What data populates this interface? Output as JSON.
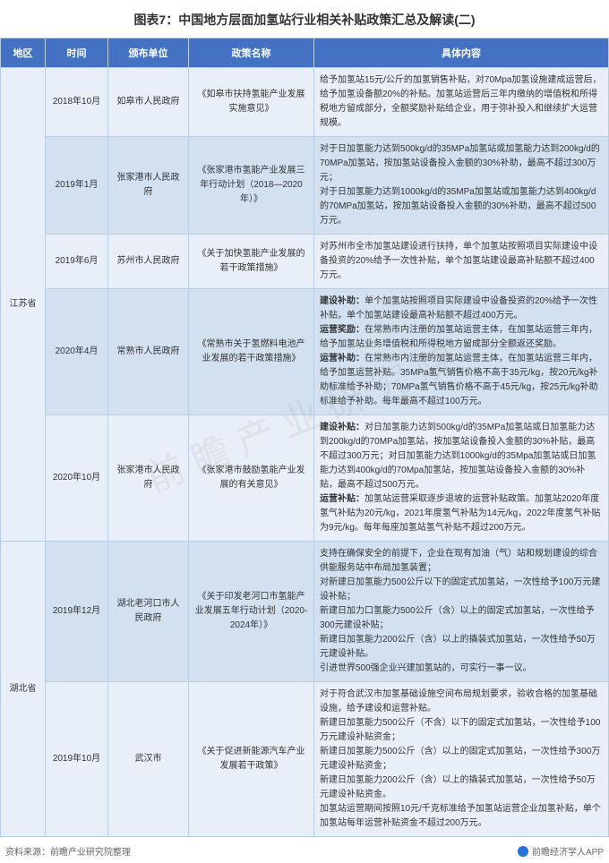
{
  "title": "图表7：中国地方层面加氢站行业相关补贴政策汇总及解读(二)",
  "columns": {
    "region": "地区",
    "time": "时间",
    "issuer": "颁布单位",
    "policy": "政策名称",
    "content": "具体内容"
  },
  "watermark": "前瞻产业研究院",
  "footer_left": "资料来源：前瞻产业研究院整理",
  "footer_right": "前瞻经济学人APP",
  "colors": {
    "header_bg": "#4372c3",
    "header_text": "#ffffff",
    "row_odd": "#e9eff8",
    "row_even": "#d2e0f0",
    "border": "#b9cde6",
    "title_text": "#333333",
    "footer_text": "#666666"
  },
  "regions": [
    {
      "name": "江苏省",
      "rows": [
        {
          "time": "2018年10月",
          "issuer": "如皋市人民政府",
          "policy": "《如皋市扶持氢能产业发展实施意见》",
          "content": "给予加氢站15元/公斤的加氢销售补贴，对70Mpa加氢设施建成运营后，给予加氢设备额20%的补贴。加氢站运营后三年内缴纳的增值税和所得税地方留成部分，全额奖励补贴给企业，用于弥补投入和继续扩大运营规模。"
        },
        {
          "time": "2019年1月",
          "issuer": "张家港市人民政府",
          "policy": "《张家港市氢能产业发展三年行动计划（2018—2020年）》",
          "content": "对于日加氢能力达到500kg/d的35MPa加氢站或加氢能力达到200kg/d的70MPa加氢站，按加氢站设备投入金额的30%补助，最高不超过300万元；\n对于日加氢能力达到1000kg/d的35MPa加氢站或加氢能力达到400kg/d的70MPa加氢站，按加氢站设备投入金额的30%补助，最高不超过500万元。"
        },
        {
          "time": "2019年6月",
          "issuer": "苏州市人民政府",
          "policy": "《关于加快氢能产业发展的若干政策措施》",
          "content": "对苏州市全市加氢站建设进行扶持，单个加氢站按照项目实际建设中设备投资的20%给予一次性补贴，单个加氢站建设最高补贴额不超过400万元。"
        },
        {
          "time": "2020年4月",
          "issuer": "常熟市人民政府",
          "policy": "《常熟市关于氢燃料电池产业发展的若干政策措施》",
          "content_html": "<b>建设补助：</b>单个加氢站按照项目实际建设中设备投资的20%给予一次性补贴，单个加氢站建设最高补贴额不超过400万元。<br><b>运营奖励：</b>在常熟市内注册的加氢站运营主体，在加氢站运营三年内，给予加氢站业务增值税和所得税地方留成部分全额返还奖励。<br><b>运营补助：</b>在常熟市内注册的加氢站运营主体，在加氢站运营三年内，给予加氢运营补贴。35MPa氢气销售价格不高于35元/kg，按20元/kg补助标准给予补助；70MPa氢气销售价格不高于45元/kg，按25元/kg补助标准给予补助。每年最高不超过100万元。"
        },
        {
          "time": "2020年10月",
          "issuer": "张家港市人民政府",
          "policy": "《张家港市鼓励氢能产业发展的有关意见》",
          "content_html": "<b>建设补贴：</b>对日加氢能力达到500kg/d的35MPa加氢站或日加氢能力达到200kg/d的70MPa加氢站，按加氢站设备投入金额的30%补贴，最高不超过300万元；对日加氢能力达到1000kg/d的35Mpa加氢站或日加氢能力达到400kg/d的70Mpa加氢站，按加氢站设备投入金额的30%补贴，最高不超过500万元。<br><b>运营补贴：</b>加氢站运营采取逐步退坡的运营补贴政策。加氢站2020年度氢气补贴为20元/kg，2021年度氢气补贴为14元/kg，2022年度氢气补贴为9元/kg。每年每座加氢站氢气补贴不超过200万元。"
        }
      ]
    },
    {
      "name": "湖北省",
      "rows": [
        {
          "time": "2019年12月",
          "issuer": "湖北老河口市人民政府",
          "policy": "《关于印发老河口市氢能产业发展五年行动计划（2020-2024年）》",
          "content": "支持在确保安全的前提下，企业在现有加油（气）站和规划建设的综合供能服务站中布局加氢装置；\n对新建日加氢能力500公斤以下的固定式加氢站，一次性给予100万元建设补贴；\n新建日加力口氢能力500公斤（含）以上的固定式加氢站，一次性给予300元建设补贴；\n新建日加氢能力200公斤（含）以上的撬装式加氢站，一次性给予50万元建设补贴。\n引进世界500强企业兴建加氢站的，可实行一事一议。"
        },
        {
          "time": "2019年10月",
          "issuer": "武汉市",
          "policy": "《关于促进新能源汽车产业发展若干政策》",
          "content": "对于符合武汉市加氢基础设施空间布局规划要求，验收合格的加氢基础设施，给予建设和运营补贴。\n新建日加氢能力500公斤（不含）以下的固定式加氢站，一次性给予100万元建设补贴资金；\n新建日加氢能力500公斤（含）以上的固定式加氢站，一次性给予300万元建设补贴资金；\n新建日加氢能力200公斤（含）以上的撬装式加氢站，一次性给予50万元建设补贴资金。\n加氢站运营期间按照10元/千克标准给予加氢站运营企业加氢补贴，单个加氢站每年运营补贴资金不超过200万元。"
        }
      ]
    }
  ]
}
